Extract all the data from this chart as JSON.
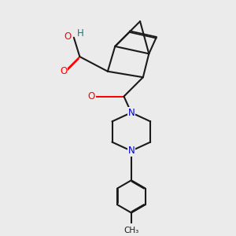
{
  "background_color": "#ebebeb",
  "bond_color": "#1a1a1a",
  "atom_colors": {
    "O": "#ff0000",
    "N": "#0000cc",
    "H": "#008080",
    "C": "#1a1a1a"
  },
  "font_size_atoms": 8.5,
  "title": "",
  "figsize": [
    3.0,
    3.0
  ],
  "dpi": 100
}
